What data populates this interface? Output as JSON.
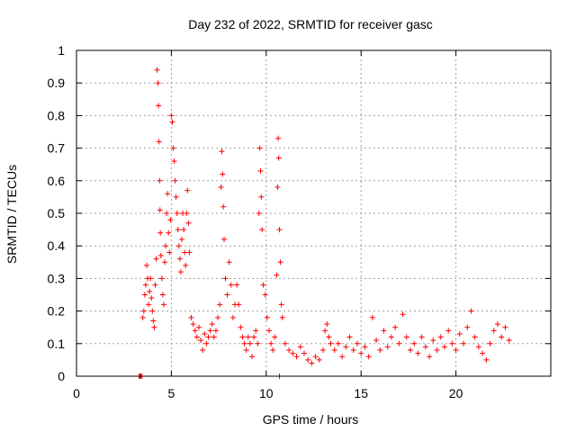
{
  "chart_data": {
    "type": "scatter",
    "title": "Day 232 of 2022, SRMTID for receiver gasc",
    "xlabel": "GPS time / hours",
    "ylabel": "SRMTID / TECUs",
    "xlim": [
      0,
      25
    ],
    "ylim": [
      0,
      1
    ],
    "x_ticks": [
      0,
      5,
      10,
      15,
      20
    ],
    "x_tick_labels": [
      "0",
      "5",
      "10",
      "15",
      "20"
    ],
    "y_ticks": [
      0,
      0.1,
      0.2,
      0.3,
      0.4,
      0.5,
      0.6,
      0.7,
      0.8,
      0.9,
      1
    ],
    "y_tick_labels": [
      "0",
      "0.1",
      "0.2",
      "0.3",
      "0.4",
      "0.5",
      "0.6",
      "0.7",
      "0.8",
      "0.9",
      "1"
    ],
    "grid": true,
    "marker": "+",
    "series": [
      {
        "name": "SRMTID",
        "color": "#ff0000",
        "points": [
          [
            3.3,
            0.0
          ],
          [
            3.35,
            0.0
          ],
          [
            3.4,
            0.0
          ],
          [
            3.45,
            0.0
          ],
          [
            3.5,
            0.18
          ],
          [
            3.55,
            0.2
          ],
          [
            3.6,
            0.25
          ],
          [
            3.65,
            0.28
          ],
          [
            3.7,
            0.34
          ],
          [
            3.75,
            0.3
          ],
          [
            3.8,
            0.22
          ],
          [
            3.85,
            0.26
          ],
          [
            3.9,
            0.3
          ],
          [
            3.95,
            0.24
          ],
          [
            4.0,
            0.2
          ],
          [
            4.05,
            0.17
          ],
          [
            4.1,
            0.15
          ],
          [
            4.15,
            0.28
          ],
          [
            4.2,
            0.36
          ],
          [
            4.25,
            0.94
          ],
          [
            4.3,
            0.9
          ],
          [
            4.32,
            0.83
          ],
          [
            4.35,
            0.72
          ],
          [
            4.38,
            0.6
          ],
          [
            4.4,
            0.51
          ],
          [
            4.42,
            0.44
          ],
          [
            4.45,
            0.37
          ],
          [
            4.5,
            0.3
          ],
          [
            4.55,
            0.25
          ],
          [
            4.6,
            0.22
          ],
          [
            4.65,
            0.35
          ],
          [
            4.7,
            0.4
          ],
          [
            4.75,
            0.5
          ],
          [
            4.8,
            0.56
          ],
          [
            4.85,
            0.44
          ],
          [
            4.9,
            0.38
          ],
          [
            4.95,
            0.48
          ],
          [
            5.0,
            0.8
          ],
          [
            5.05,
            0.78
          ],
          [
            5.1,
            0.7
          ],
          [
            5.15,
            0.66
          ],
          [
            5.2,
            0.6
          ],
          [
            5.25,
            0.55
          ],
          [
            5.3,
            0.5
          ],
          [
            5.35,
            0.45
          ],
          [
            5.4,
            0.4
          ],
          [
            5.45,
            0.36
          ],
          [
            5.5,
            0.32
          ],
          [
            5.55,
            0.42
          ],
          [
            5.6,
            0.5
          ],
          [
            5.65,
            0.45
          ],
          [
            5.7,
            0.38
          ],
          [
            5.75,
            0.34
          ],
          [
            5.8,
            0.5
          ],
          [
            5.85,
            0.57
          ],
          [
            5.9,
            0.47
          ],
          [
            5.95,
            0.38
          ],
          [
            6.05,
            0.18
          ],
          [
            6.15,
            0.16
          ],
          [
            6.25,
            0.14
          ],
          [
            6.35,
            0.12
          ],
          [
            6.45,
            0.15
          ],
          [
            6.55,
            0.11
          ],
          [
            6.65,
            0.08
          ],
          [
            6.75,
            0.13
          ],
          [
            6.85,
            0.1
          ],
          [
            6.95,
            0.12
          ],
          [
            7.05,
            0.14
          ],
          [
            7.15,
            0.16
          ],
          [
            7.25,
            0.12
          ],
          [
            7.35,
            0.14
          ],
          [
            7.45,
            0.18
          ],
          [
            7.55,
            0.22
          ],
          [
            7.62,
            0.58
          ],
          [
            7.66,
            0.69
          ],
          [
            7.7,
            0.62
          ],
          [
            7.74,
            0.52
          ],
          [
            7.78,
            0.42
          ],
          [
            7.85,
            0.3
          ],
          [
            7.95,
            0.25
          ],
          [
            8.05,
            0.35
          ],
          [
            8.15,
            0.28
          ],
          [
            8.25,
            0.18
          ],
          [
            8.35,
            0.22
          ],
          [
            8.45,
            0.28
          ],
          [
            8.55,
            0.22
          ],
          [
            8.65,
            0.15
          ],
          [
            8.75,
            0.12
          ],
          [
            8.85,
            0.1
          ],
          [
            8.95,
            0.08
          ],
          [
            9.05,
            0.12
          ],
          [
            9.15,
            0.1
          ],
          [
            9.25,
            0.06
          ],
          [
            9.35,
            0.12
          ],
          [
            9.45,
            0.14
          ],
          [
            9.55,
            0.1
          ],
          [
            9.62,
            0.5
          ],
          [
            9.66,
            0.7
          ],
          [
            9.7,
            0.63
          ],
          [
            9.74,
            0.55
          ],
          [
            9.78,
            0.45
          ],
          [
            9.85,
            0.28
          ],
          [
            9.95,
            0.25
          ],
          [
            10.05,
            0.18
          ],
          [
            10.15,
            0.14
          ],
          [
            10.25,
            0.1
          ],
          [
            10.35,
            0.08
          ],
          [
            10.45,
            0.12
          ],
          [
            10.55,
            0.31
          ],
          [
            10.6,
            0.58
          ],
          [
            10.63,
            0.73
          ],
          [
            10.66,
            0.67
          ],
          [
            10.7,
            0.45
          ],
          [
            10.75,
            0.35
          ],
          [
            10.8,
            0.22
          ],
          [
            10.85,
            0.18
          ],
          [
            10.7,
            0.0
          ],
          [
            11.0,
            0.1
          ],
          [
            11.2,
            0.08
          ],
          [
            11.4,
            0.07
          ],
          [
            11.6,
            0.06
          ],
          [
            11.8,
            0.09
          ],
          [
            12.0,
            0.07
          ],
          [
            12.2,
            0.05
          ],
          [
            12.4,
            0.04
          ],
          [
            12.6,
            0.06
          ],
          [
            12.8,
            0.05
          ],
          [
            13.0,
            0.08
          ],
          [
            13.1,
            0.14
          ],
          [
            13.2,
            0.16
          ],
          [
            13.3,
            0.12
          ],
          [
            13.4,
            0.1
          ],
          [
            13.6,
            0.08
          ],
          [
            13.8,
            0.1
          ],
          [
            14.0,
            0.06
          ],
          [
            14.2,
            0.09
          ],
          [
            14.4,
            0.12
          ],
          [
            14.6,
            0.08
          ],
          [
            14.8,
            0.1
          ],
          [
            15.0,
            0.07
          ],
          [
            15.2,
            0.09
          ],
          [
            15.4,
            0.06
          ],
          [
            15.6,
            0.18
          ],
          [
            15.8,
            0.11
          ],
          [
            16.0,
            0.08
          ],
          [
            16.2,
            0.14
          ],
          [
            16.4,
            0.09
          ],
          [
            16.6,
            0.12
          ],
          [
            16.8,
            0.15
          ],
          [
            17.0,
            0.1
          ],
          [
            17.2,
            0.19
          ],
          [
            17.4,
            0.12
          ],
          [
            17.6,
            0.08
          ],
          [
            17.8,
            0.1
          ],
          [
            18.0,
            0.07
          ],
          [
            18.2,
            0.12
          ],
          [
            18.4,
            0.09
          ],
          [
            18.6,
            0.06
          ],
          [
            18.8,
            0.11
          ],
          [
            19.0,
            0.08
          ],
          [
            19.2,
            0.12
          ],
          [
            19.4,
            0.09
          ],
          [
            19.6,
            0.14
          ],
          [
            19.8,
            0.1
          ],
          [
            20.0,
            0.08
          ],
          [
            20.2,
            0.13
          ],
          [
            20.4,
            0.1
          ],
          [
            20.6,
            0.15
          ],
          [
            20.8,
            0.2
          ],
          [
            21.0,
            0.12
          ],
          [
            21.2,
            0.09
          ],
          [
            21.4,
            0.07
          ],
          [
            21.6,
            0.05
          ],
          [
            21.8,
            0.1
          ],
          [
            22.0,
            0.14
          ],
          [
            22.2,
            0.16
          ],
          [
            22.4,
            0.12
          ],
          [
            22.6,
            0.15
          ],
          [
            22.8,
            0.11
          ]
        ]
      }
    ]
  }
}
